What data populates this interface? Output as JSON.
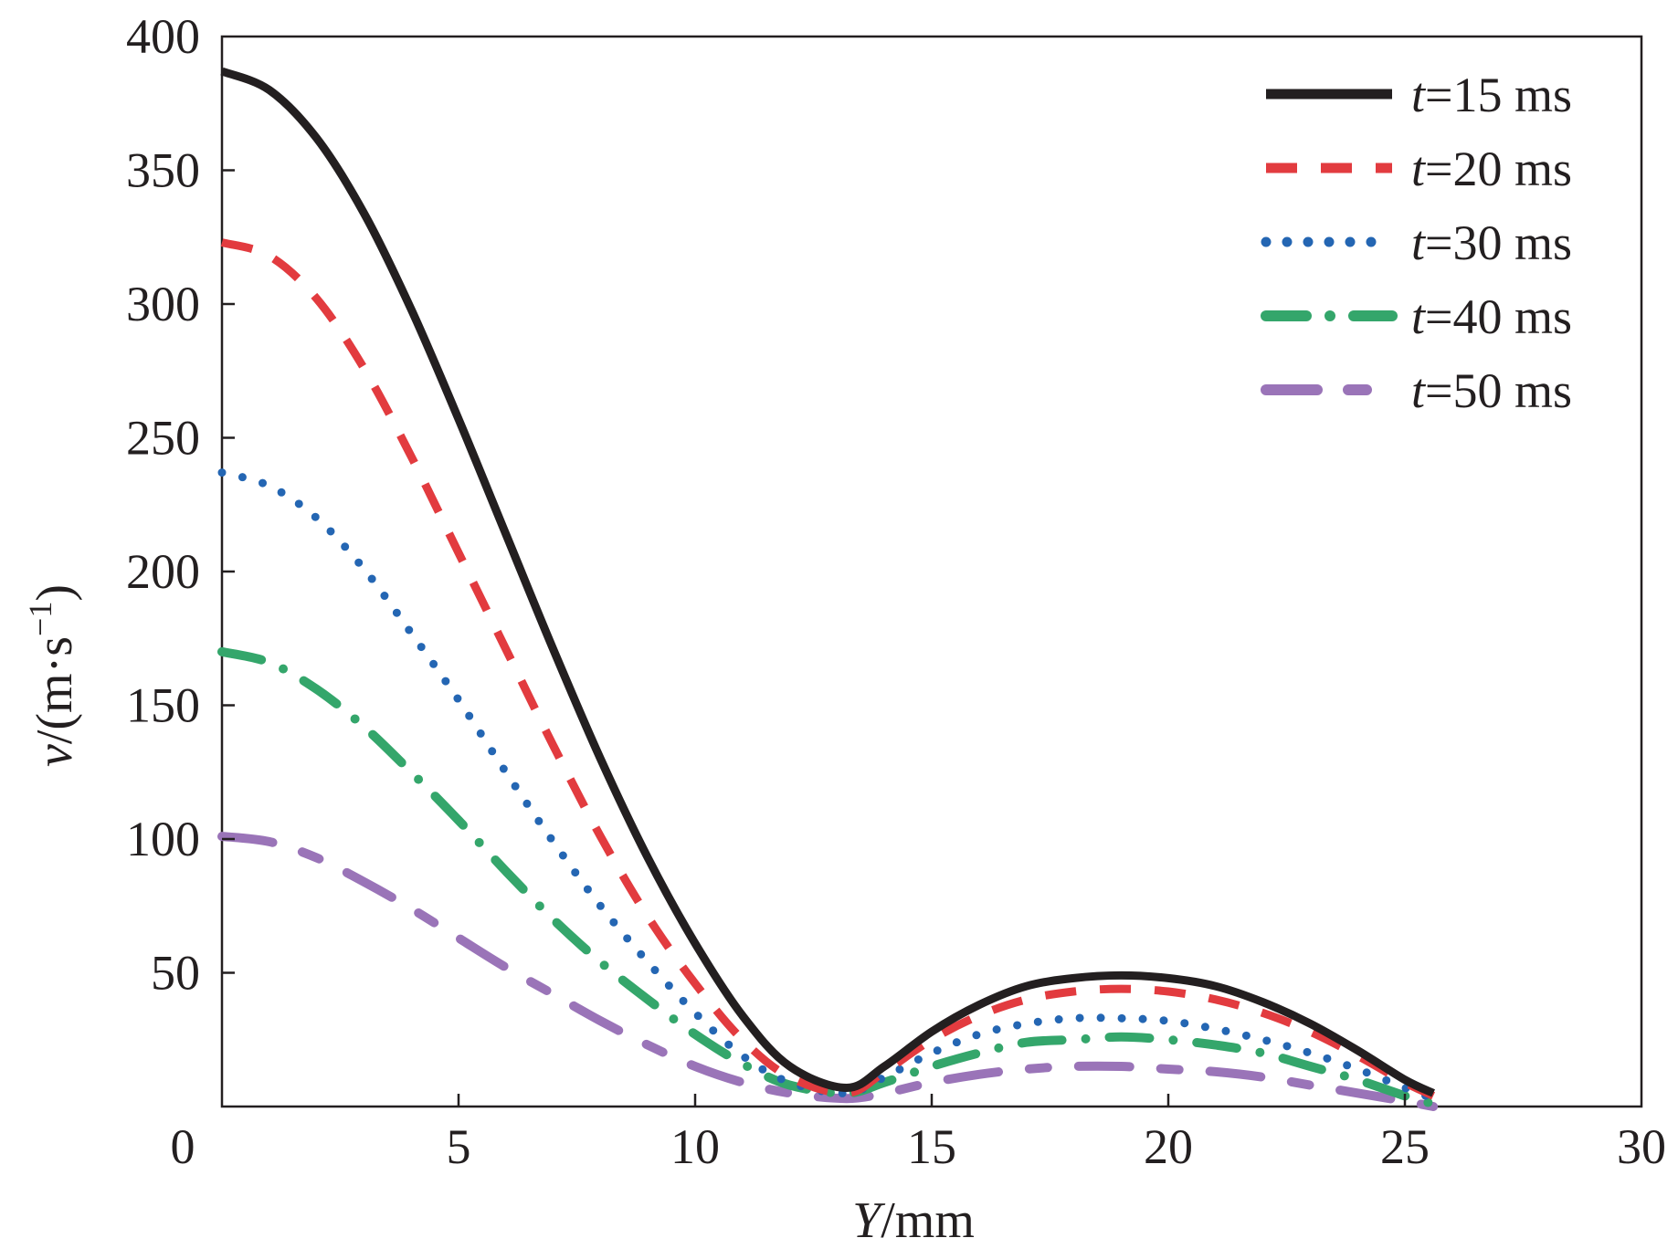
{
  "chart_data": {
    "type": "line",
    "xlabel": {
      "var": "Y",
      "unit": "/mm"
    },
    "ylabel": {
      "var": "v",
      "unit": "/(m·s",
      "sup": "−1",
      "close": ")"
    },
    "xlim": [
      0,
      30
    ],
    "ylim": [
      0,
      400
    ],
    "x_ticks": [
      0,
      5,
      10,
      15,
      20,
      25,
      30
    ],
    "y_ticks": [
      50,
      100,
      150,
      200,
      250,
      300,
      350,
      400
    ],
    "x_tick_labels": [
      "0",
      "5",
      "10",
      "15",
      "20",
      "25",
      "30"
    ],
    "y_tick_labels": [
      "50",
      "100",
      "150",
      "200",
      "250",
      "300",
      "350",
      "400"
    ],
    "grid": false,
    "legend_position": "top-right",
    "series": [
      {
        "name": "t=15 ms",
        "var": "t",
        "rest": "=15 ms",
        "color": "#231f20",
        "style": "solid",
        "x": [
          0,
          1,
          2,
          3,
          4,
          5,
          6,
          7,
          8,
          9,
          10,
          11,
          12,
          13.2,
          14,
          15,
          16,
          17,
          18,
          19,
          20,
          21,
          22,
          23,
          24,
          25,
          25.6
        ],
        "y": [
          387,
          380,
          362,
          334,
          298,
          257,
          214,
          171,
          130,
          93,
          61,
          34,
          15,
          7,
          15,
          28,
          38,
          45,
          48,
          49,
          48,
          45,
          39,
          31,
          21,
          10,
          5
        ]
      },
      {
        "name": "t=20 ms",
        "var": "t",
        "rest": "=20 ms",
        "color": "#e23b3f",
        "style": "dashed",
        "x": [
          0,
          1,
          2,
          3,
          4,
          5,
          6,
          7,
          8,
          9,
          10,
          11,
          12,
          13.2,
          14,
          15,
          16,
          17,
          18,
          19,
          20,
          21,
          22,
          23,
          24,
          25,
          25.6
        ],
        "y": [
          323,
          318,
          302,
          276,
          243,
          207,
          171,
          135,
          101,
          71,
          46,
          25,
          11,
          5,
          13,
          25,
          34,
          40,
          43,
          44,
          43,
          40,
          35,
          28,
          19,
          9,
          4
        ]
      },
      {
        "name": "t=30 ms",
        "var": "t",
        "rest": "=30 ms",
        "color": "#2466b3",
        "style": "dotted",
        "x": [
          0,
          1,
          2,
          3,
          4,
          5,
          6,
          7,
          8,
          9,
          10,
          11,
          12,
          13.2,
          14,
          15,
          16,
          17,
          18,
          19,
          20,
          21,
          22,
          23,
          24,
          25,
          25.6
        ],
        "y": [
          237,
          232,
          220,
          201,
          177,
          152,
          125,
          99,
          75,
          54,
          35,
          19,
          9,
          5,
          11,
          20,
          27,
          31,
          33,
          33,
          32,
          29,
          25,
          20,
          14,
          7,
          3
        ]
      },
      {
        "name": "t=40 ms",
        "var": "t",
        "rest": "=40 ms",
        "color": "#34a66b",
        "style": "dashdot",
        "x": [
          0,
          1,
          2,
          3,
          4,
          5,
          6,
          7,
          8,
          9,
          10,
          11,
          12,
          13.2,
          14,
          15,
          16,
          17,
          18,
          19,
          20,
          21,
          22,
          23,
          24,
          25,
          25.6
        ],
        "y": [
          170,
          166,
          156,
          142,
          125,
          107,
          88,
          70,
          54,
          40,
          27,
          16,
          8,
          5,
          9,
          15,
          20,
          24,
          25,
          26,
          25,
          23,
          20,
          15,
          10,
          4,
          1
        ]
      },
      {
        "name": "t=50 ms",
        "var": "t",
        "rest": "=50 ms",
        "color": "#9a74b8",
        "style": "longdash",
        "x": [
          0,
          1,
          2,
          3,
          4,
          5,
          6,
          7,
          8,
          9,
          10,
          11,
          12,
          13.2,
          14,
          15,
          16,
          17,
          18,
          19,
          20,
          21,
          22,
          23,
          24,
          25,
          25.6
        ],
        "y": [
          101,
          99,
          93,
          84,
          74,
          63,
          52,
          42,
          32,
          23,
          15,
          9,
          5,
          3,
          5,
          9,
          12,
          14,
          15,
          15,
          14,
          13,
          11,
          8,
          5,
          2,
          0
        ]
      }
    ]
  }
}
